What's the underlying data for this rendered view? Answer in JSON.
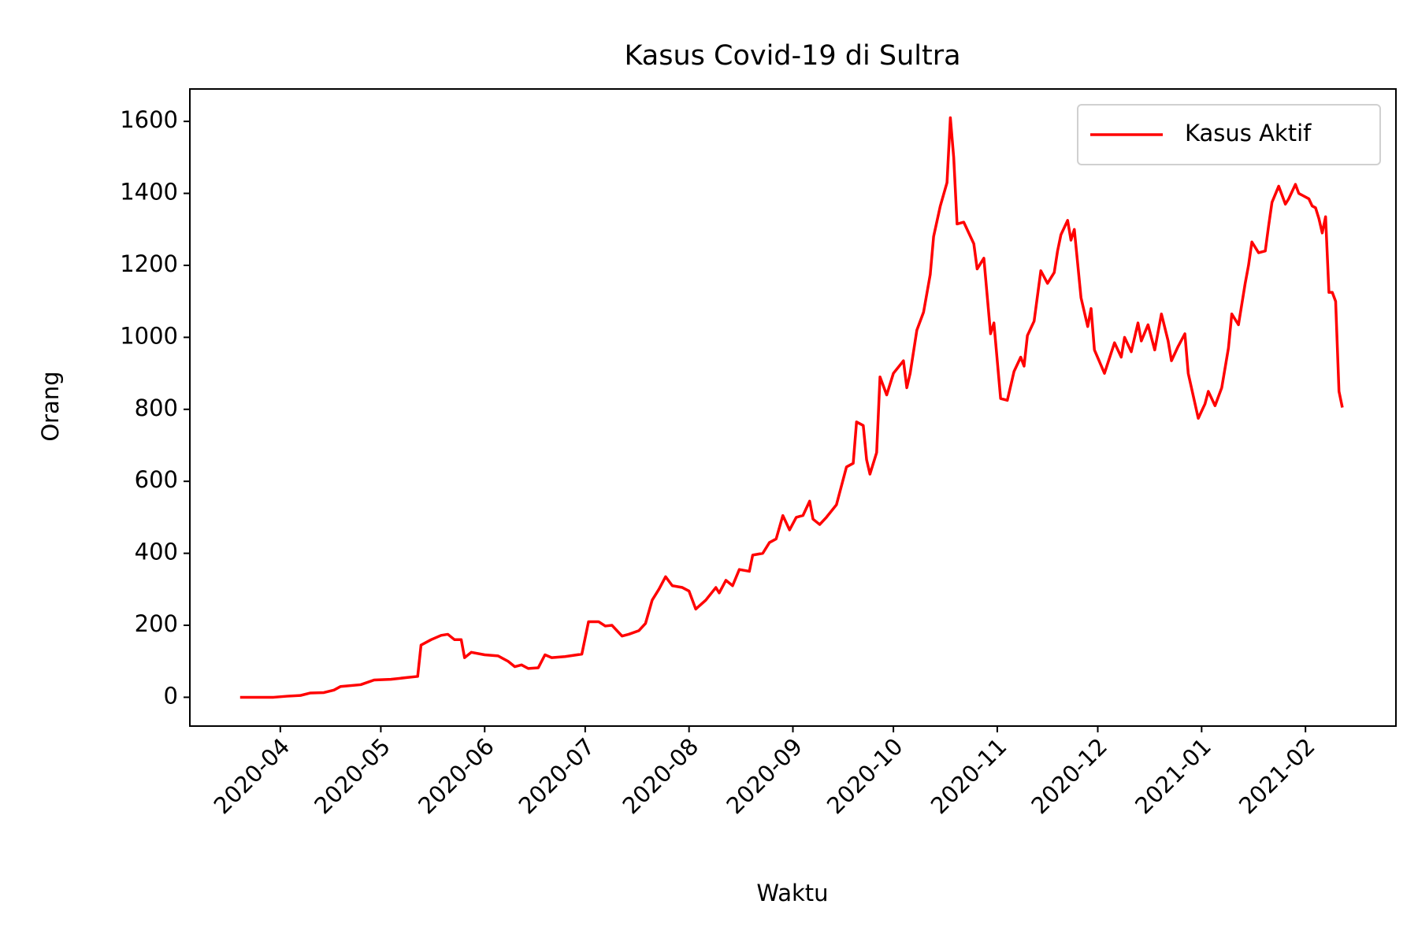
{
  "chart_data": {
    "type": "line",
    "title": "Kasus Covid-19 di Sultra",
    "xlabel": "Waktu",
    "ylabel": "Orang",
    "legend": "upper right",
    "x": [
      "2020-03-20",
      "2020-03-30",
      "2020-04-03",
      "2020-04-07",
      "2020-04-10",
      "2020-04-14",
      "2020-04-17",
      "2020-04-19",
      "2020-04-25",
      "2020-04-29",
      "2020-05-04",
      "2020-05-09",
      "2020-05-12",
      "2020-05-13",
      "2020-05-16",
      "2020-05-19",
      "2020-05-21",
      "2020-05-23",
      "2020-05-25",
      "2020-05-26",
      "2020-05-28",
      "2020-06-01",
      "2020-06-05",
      "2020-06-08",
      "2020-06-10",
      "2020-06-12",
      "2020-06-14",
      "2020-06-17",
      "2020-06-19",
      "2020-06-21",
      "2020-06-25",
      "2020-06-30",
      "2020-07-02",
      "2020-07-05",
      "2020-07-07",
      "2020-07-09",
      "2020-07-12",
      "2020-07-14",
      "2020-07-17",
      "2020-07-19",
      "2020-07-21",
      "2020-07-23",
      "2020-07-25",
      "2020-07-27",
      "2020-07-30",
      "2020-08-01",
      "2020-08-03",
      "2020-08-06",
      "2020-08-09",
      "2020-08-10",
      "2020-08-12",
      "2020-08-14",
      "2020-08-16",
      "2020-08-19",
      "2020-08-20",
      "2020-08-23",
      "2020-08-25",
      "2020-08-27",
      "2020-08-29",
      "2020-08-31",
      "2020-09-02",
      "2020-09-04",
      "2020-09-06",
      "2020-09-07",
      "2020-09-09",
      "2020-09-11",
      "2020-09-14",
      "2020-09-17",
      "2020-09-19",
      "2020-09-20",
      "2020-09-22",
      "2020-09-23",
      "2020-09-24",
      "2020-09-26",
      "2020-09-27",
      "2020-09-29",
      "2020-10-01",
      "2020-10-04",
      "2020-10-05",
      "2020-10-06",
      "2020-10-08",
      "2020-10-10",
      "2020-10-12",
      "2020-10-13",
      "2020-10-15",
      "2020-10-17",
      "2020-10-18",
      "2020-10-19",
      "2020-10-20",
      "2020-10-22",
      "2020-10-25",
      "2020-10-26",
      "2020-10-28",
      "2020-10-30",
      "2020-10-31",
      "2020-11-02",
      "2020-11-04",
      "2020-11-06",
      "2020-11-08",
      "2020-11-09",
      "2020-11-10",
      "2020-11-12",
      "2020-11-14",
      "2020-11-16",
      "2020-11-18",
      "2020-11-19",
      "2020-11-20",
      "2020-11-22",
      "2020-11-23",
      "2020-11-24",
      "2020-11-26",
      "2020-11-28",
      "2020-11-29",
      "2020-11-30",
      "2020-12-03",
      "2020-12-06",
      "2020-12-08",
      "2020-12-09",
      "2020-12-11",
      "2020-12-13",
      "2020-12-14",
      "2020-12-16",
      "2020-12-18",
      "2020-12-20",
      "2020-12-22",
      "2020-12-23",
      "2020-12-25",
      "2020-12-27",
      "2020-12-28",
      "2020-12-31",
      "2021-01-02",
      "2021-01-03",
      "2021-01-05",
      "2021-01-07",
      "2021-01-09",
      "2021-01-10",
      "2021-01-12",
      "2021-01-14",
      "2021-01-15",
      "2021-01-16",
      "2021-01-18",
      "2021-01-20",
      "2021-01-21",
      "2021-01-22",
      "2021-01-24",
      "2021-01-26",
      "2021-01-27",
      "2021-01-29",
      "2021-01-30",
      "2021-02-02",
      "2021-02-03",
      "2021-02-04",
      "2021-02-05",
      "2021-02-06",
      "2021-02-07",
      "2021-02-08",
      "2021-02-09",
      "2021-02-10",
      "2021-02-11",
      "2021-02-12"
    ],
    "series": [
      {
        "name": "Kasus Aktif",
        "color": "#ff0000",
        "values": [
          0,
          0,
          3,
          5,
          12,
          13,
          20,
          30,
          35,
          48,
          50,
          55,
          58,
          145,
          160,
          172,
          175,
          160,
          160,
          110,
          125,
          118,
          115,
          100,
          85,
          90,
          80,
          82,
          118,
          110,
          113,
          120,
          210,
          210,
          198,
          200,
          170,
          175,
          185,
          205,
          270,
          300,
          335,
          310,
          305,
          295,
          245,
          270,
          305,
          290,
          325,
          310,
          355,
          350,
          395,
          400,
          430,
          440,
          505,
          465,
          500,
          505,
          545,
          495,
          480,
          500,
          535,
          640,
          650,
          765,
          755,
          660,
          620,
          680,
          890,
          840,
          900,
          935,
          860,
          900,
          1020,
          1070,
          1175,
          1280,
          1365,
          1430,
          1610,
          1500,
          1315,
          1320,
          1260,
          1190,
          1220,
          1010,
          1040,
          830,
          825,
          905,
          945,
          920,
          1005,
          1045,
          1185,
          1150,
          1180,
          1240,
          1285,
          1325,
          1270,
          1300,
          1110,
          1030,
          1080,
          965,
          900,
          985,
          945,
          1000,
          960,
          1040,
          990,
          1035,
          965,
          1065,
          990,
          935,
          975,
          1010,
          900,
          775,
          815,
          850,
          810,
          860,
          970,
          1065,
          1035,
          1150,
          1200,
          1265,
          1235,
          1240,
          1310,
          1375,
          1420,
          1370,
          1385,
          1425,
          1400,
          1385,
          1365,
          1360,
          1330,
          1290,
          1335,
          1125,
          1125,
          1100,
          850,
          805
        ]
      }
    ],
    "xlim": [
      "2020-03-05",
      "2021-02-28"
    ],
    "xticks": [
      {
        "value": "2020-04-01",
        "label": "2020-04"
      },
      {
        "value": "2020-05-01",
        "label": "2020-05"
      },
      {
        "value": "2020-06-01",
        "label": "2020-06"
      },
      {
        "value": "2020-07-01",
        "label": "2020-07"
      },
      {
        "value": "2020-08-01",
        "label": "2020-08"
      },
      {
        "value": "2020-09-01",
        "label": "2020-09"
      },
      {
        "value": "2020-10-01",
        "label": "2020-10"
      },
      {
        "value": "2020-11-01",
        "label": "2020-11"
      },
      {
        "value": "2020-12-01",
        "label": "2020-12"
      },
      {
        "value": "2021-01-01",
        "label": "2021-01"
      },
      {
        "value": "2021-02-01",
        "label": "2021-02"
      }
    ],
    "ylim": [
      -80,
      1690
    ],
    "yticks": [
      0,
      200,
      400,
      600,
      800,
      1000,
      1200,
      1400,
      1600
    ],
    "grid": false
  }
}
